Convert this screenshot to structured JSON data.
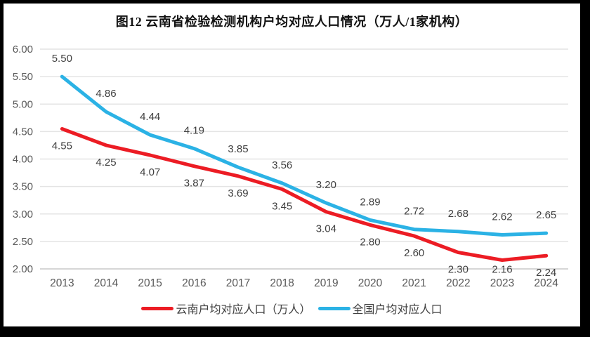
{
  "title": "图12  云南省检验检测机构户均对应人口情况（万人/1家机构）",
  "chart_data": {
    "type": "line",
    "categories": [
      "2013",
      "2014",
      "2015",
      "2016",
      "2017",
      "2018",
      "2019",
      "2020",
      "2021",
      "2022",
      "2023",
      "2024"
    ],
    "series": [
      {
        "name": "云南户均对应人口（万人）",
        "color": "#EC1C24",
        "label_position": "below",
        "values": [
          4.55,
          4.25,
          4.07,
          3.87,
          3.69,
          3.45,
          3.04,
          2.8,
          2.6,
          2.3,
          2.16,
          2.24
        ]
      },
      {
        "name": "全国户均对应人口",
        "color": "#2BB2E5",
        "label_position": "above",
        "values": [
          5.5,
          4.86,
          4.44,
          4.19,
          3.85,
          3.56,
          3.2,
          2.89,
          2.72,
          2.68,
          2.62,
          2.65
        ]
      }
    ],
    "title": "图12  云南省检验检测机构户均对应人口情况（万人/1家机构）",
    "xlabel": "",
    "ylabel": "",
    "ylim": [
      2.0,
      6.0
    ],
    "ytick_step": 0.5,
    "yticks": [
      "6.00",
      "5.50",
      "5.00",
      "4.50",
      "4.00",
      "3.50",
      "3.00",
      "2.50",
      "2.00"
    ],
    "grid": true,
    "legend_position": "bottom",
    "colors": {
      "gridline": "#E4E4E4",
      "axis_line": "#C9C9C9",
      "tick_label": "#595959",
      "data_label": "#404040"
    }
  }
}
